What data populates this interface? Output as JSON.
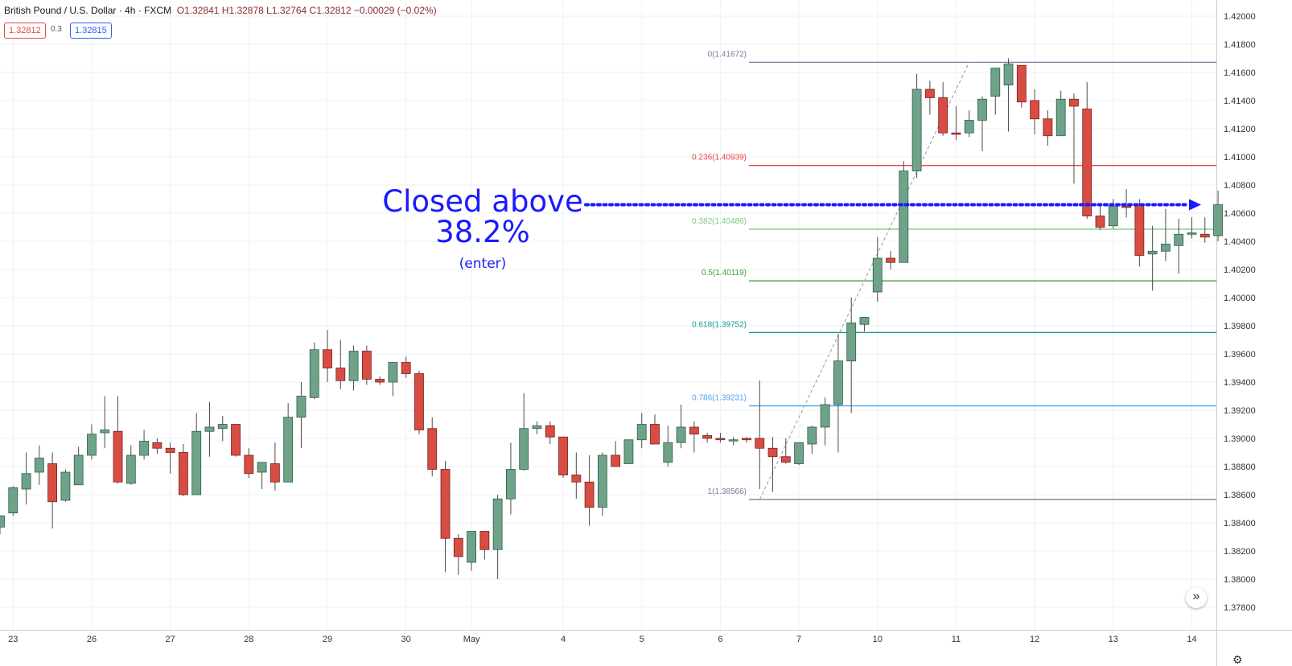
{
  "header": {
    "title": "British Pound / U.S. Dollar · 4h · FXCM",
    "ohlc": "O1.32841 H1.32878 L1.32764 C1.32812 −0.00029 (−0.02%)",
    "sell_price": "1.32812",
    "spread": "0.3",
    "buy_price": "1.32815"
  },
  "annotation": {
    "line1": "Closed above",
    "line2": "38.2%",
    "line3": "(enter)"
  },
  "chart_data": {
    "type": "candlestick",
    "ylim": [
      1.3765,
      1.4215
    ],
    "y_ticks": [
      "1.42000",
      "1.41800",
      "1.41600",
      "1.41400",
      "1.41200",
      "1.41000",
      "1.40800",
      "1.40600",
      "1.40400",
      "1.40200",
      "1.40000",
      "1.39800",
      "1.39600",
      "1.39400",
      "1.39200",
      "1.39000",
      "1.38800",
      "1.38600",
      "1.38400",
      "1.38200",
      "1.38000",
      "1.37800"
    ],
    "x_ticks": [
      {
        "label": "23",
        "i": 1
      },
      {
        "label": "26",
        "i": 7
      },
      {
        "label": "27",
        "i": 13
      },
      {
        "label": "28",
        "i": 19
      },
      {
        "label": "29",
        "i": 25
      },
      {
        "label": "30",
        "i": 31
      },
      {
        "label": "May",
        "i": 36
      },
      {
        "label": "4",
        "i": 43
      },
      {
        "label": "5",
        "i": 49
      },
      {
        "label": "6",
        "i": 55
      },
      {
        "label": "7",
        "i": 61
      },
      {
        "label": "10",
        "i": 67
      },
      {
        "label": "11",
        "i": 73
      },
      {
        "label": "12",
        "i": 79
      },
      {
        "label": "13",
        "i": 85
      },
      {
        "label": "14",
        "i": 91
      }
    ],
    "candles": [
      [
        1.3837,
        1.3845,
        1.3832,
        1.3845
      ],
      [
        1.3847,
        1.3866,
        1.3845,
        1.3865
      ],
      [
        1.3864,
        1.389,
        1.3853,
        1.3875
      ],
      [
        1.3876,
        1.3895,
        1.3867,
        1.3886
      ],
      [
        1.3882,
        1.389,
        1.3836,
        1.3855
      ],
      [
        1.3856,
        1.3878,
        1.3855,
        1.3876
      ],
      [
        1.3867,
        1.3894,
        1.3867,
        1.3888
      ],
      [
        1.3888,
        1.391,
        1.3885,
        1.3903
      ],
      [
        1.3904,
        1.393,
        1.3893,
        1.3906
      ],
      [
        1.3905,
        1.393,
        1.3868,
        1.3869
      ],
      [
        1.3868,
        1.3895,
        1.3867,
        1.3888
      ],
      [
        1.3888,
        1.3906,
        1.3885,
        1.3898
      ],
      [
        1.3897,
        1.39,
        1.3889,
        1.3893
      ],
      [
        1.3893,
        1.3897,
        1.3875,
        1.389
      ],
      [
        1.389,
        1.3896,
        1.3859,
        1.386
      ],
      [
        1.386,
        1.3918,
        1.386,
        1.3905
      ],
      [
        1.3905,
        1.3926,
        1.3887,
        1.3908
      ],
      [
        1.3907,
        1.3916,
        1.3898,
        1.391
      ],
      [
        1.391,
        1.391,
        1.3887,
        1.3888
      ],
      [
        1.3888,
        1.3893,
        1.3872,
        1.3875
      ],
      [
        1.3876,
        1.3883,
        1.3864,
        1.3883
      ],
      [
        1.3882,
        1.3897,
        1.3863,
        1.3869
      ],
      [
        1.3869,
        1.3925,
        1.3869,
        1.3915
      ],
      [
        1.3915,
        1.394,
        1.3893,
        1.393
      ],
      [
        1.3929,
        1.3968,
        1.3928,
        1.3963
      ],
      [
        1.3963,
        1.3977,
        1.394,
        1.395
      ],
      [
        1.395,
        1.397,
        1.3935,
        1.3941
      ],
      [
        1.3941,
        1.3966,
        1.3934,
        1.3962
      ],
      [
        1.3962,
        1.3966,
        1.3938,
        1.3942
      ],
      [
        1.3942,
        1.3944,
        1.3938,
        1.394
      ],
      [
        1.394,
        1.3954,
        1.393,
        1.3954
      ],
      [
        1.3954,
        1.3958,
        1.3943,
        1.3946
      ],
      [
        1.3946,
        1.3948,
        1.3903,
        1.3906
      ],
      [
        1.3907,
        1.3915,
        1.3873,
        1.3878
      ],
      [
        1.3878,
        1.3884,
        1.3805,
        1.3829
      ],
      [
        1.3829,
        1.3832,
        1.3803,
        1.3816
      ],
      [
        1.3812,
        1.3834,
        1.3806,
        1.3834
      ],
      [
        1.3834,
        1.3834,
        1.3814,
        1.3821
      ],
      [
        1.3821,
        1.386,
        1.38,
        1.3857
      ],
      [
        1.3857,
        1.3897,
        1.3846,
        1.3878
      ],
      [
        1.3878,
        1.3932,
        1.3877,
        1.3907
      ],
      [
        1.3907,
        1.3912,
        1.3903,
        1.3909
      ],
      [
        1.3909,
        1.3912,
        1.3896,
        1.3901
      ],
      [
        1.3901,
        1.3901,
        1.3872,
        1.3874
      ],
      [
        1.3874,
        1.389,
        1.3857,
        1.3869
      ],
      [
        1.3869,
        1.3888,
        1.3838,
        1.3851
      ],
      [
        1.3851,
        1.389,
        1.3845,
        1.3888
      ],
      [
        1.3888,
        1.3898,
        1.388,
        1.388
      ],
      [
        1.3882,
        1.3898,
        1.3882,
        1.3899
      ],
      [
        1.3899,
        1.3918,
        1.3893,
        1.391
      ],
      [
        1.391,
        1.3917,
        1.3896,
        1.3896
      ],
      [
        1.3883,
        1.3909,
        1.388,
        1.3897
      ],
      [
        1.3897,
        1.3924,
        1.3893,
        1.3908
      ],
      [
        1.3908,
        1.3912,
        1.389,
        1.3903
      ],
      [
        1.3902,
        1.3904,
        1.3897,
        1.39
      ],
      [
        1.39,
        1.3904,
        1.3897,
        1.3899
      ],
      [
        1.3899,
        1.3901,
        1.3895,
        1.3899
      ],
      [
        1.39,
        1.3901,
        1.3897,
        1.3899
      ],
      [
        1.39,
        1.3941,
        1.3864,
        1.3893
      ],
      [
        1.3893,
        1.3901,
        1.3862,
        1.3887
      ],
      [
        1.3887,
        1.39,
        1.3882,
        1.3883
      ],
      [
        1.3882,
        1.3897,
        1.3881,
        1.3897
      ],
      [
        1.3896,
        1.3909,
        1.3889,
        1.3908
      ],
      [
        1.3908,
        1.3929,
        1.3895,
        1.3924
      ],
      [
        1.3924,
        1.3974,
        1.389,
        1.3955
      ],
      [
        1.3955,
        1.4,
        1.3918,
        1.3982
      ],
      [
        1.3981,
        1.3986,
        1.3976,
        1.3986
      ],
      [
        1.4004,
        1.4043,
        1.3997,
        1.4028
      ],
      [
        1.4028,
        1.4033,
        1.402,
        1.4025
      ],
      [
        1.4025,
        1.4097,
        1.4025,
        1.409
      ],
      [
        1.409,
        1.4159,
        1.4085,
        1.4148
      ],
      [
        1.4148,
        1.4154,
        1.413,
        1.4142
      ],
      [
        1.4142,
        1.4153,
        1.4115,
        1.4117
      ],
      [
        1.4117,
        1.4136,
        1.4112,
        1.4116
      ],
      [
        1.4117,
        1.4133,
        1.4114,
        1.4126
      ],
      [
        1.4126,
        1.4143,
        1.4104,
        1.4141
      ],
      [
        1.4143,
        1.4163,
        1.413,
        1.4163
      ],
      [
        1.4151,
        1.417,
        1.4118,
        1.4166
      ],
      [
        1.4165,
        1.4165,
        1.4135,
        1.4139
      ],
      [
        1.414,
        1.4148,
        1.4116,
        1.4127
      ],
      [
        1.4127,
        1.4133,
        1.4108,
        1.4115
      ],
      [
        1.4115,
        1.4147,
        1.4115,
        1.4141
      ],
      [
        1.4141,
        1.4145,
        1.4081,
        1.4136
      ],
      [
        1.4134,
        1.4153,
        1.4056,
        1.4058
      ],
      [
        1.4058,
        1.4065,
        1.4048,
        1.405
      ],
      [
        1.4051,
        1.407,
        1.4049,
        1.4065
      ],
      [
        1.4065,
        1.4077,
        1.4057,
        1.4064
      ],
      [
        1.4066,
        1.407,
        1.4022,
        1.403
      ],
      [
        1.4031,
        1.4051,
        1.4005,
        1.4033
      ],
      [
        1.4033,
        1.4063,
        1.4026,
        1.4038
      ],
      [
        1.4037,
        1.4056,
        1.4017,
        1.4045
      ],
      [
        1.4045,
        1.4057,
        1.4042,
        1.4046
      ],
      [
        1.4045,
        1.4057,
        1.4039,
        1.4043
      ],
      [
        1.4044,
        1.4076,
        1.404,
        1.4066
      ]
    ],
    "fib_levels": [
      {
        "label": "0(1.41672)",
        "value": 1.41672,
        "color": "#7a7a9a"
      },
      {
        "label": "0.236(1.40939)",
        "value": 1.40939,
        "color": "#e0453c"
      },
      {
        "label": "0.382(1.40486)",
        "value": 1.40486,
        "color": "#7ec77e"
      },
      {
        "label": "0.5(1.40119)",
        "value": 1.40119,
        "color": "#3ba23b"
      },
      {
        "label": "0.618(1.39752)",
        "value": 1.39752,
        "color": "#109b8c"
      },
      {
        "label": "0.786(1.39231)",
        "value": 1.39231,
        "color": "#4aa3ef"
      },
      {
        "label": "1(1.38566)",
        "value": 1.38566,
        "color": "#7a7a9a"
      }
    ],
    "fib_anchor": {
      "from_i": 58,
      "from_value": 1.38566,
      "to_i": 74,
      "to_value": 1.41672
    },
    "arrow_value": 1.4066,
    "colors": {
      "up": "#6ea38a",
      "down": "#d84d43",
      "up_border": "#2f5e45",
      "down_border": "#7a1f1a",
      "wick": "#4a4a4a",
      "arrow": "#1a1aff"
    }
  }
}
